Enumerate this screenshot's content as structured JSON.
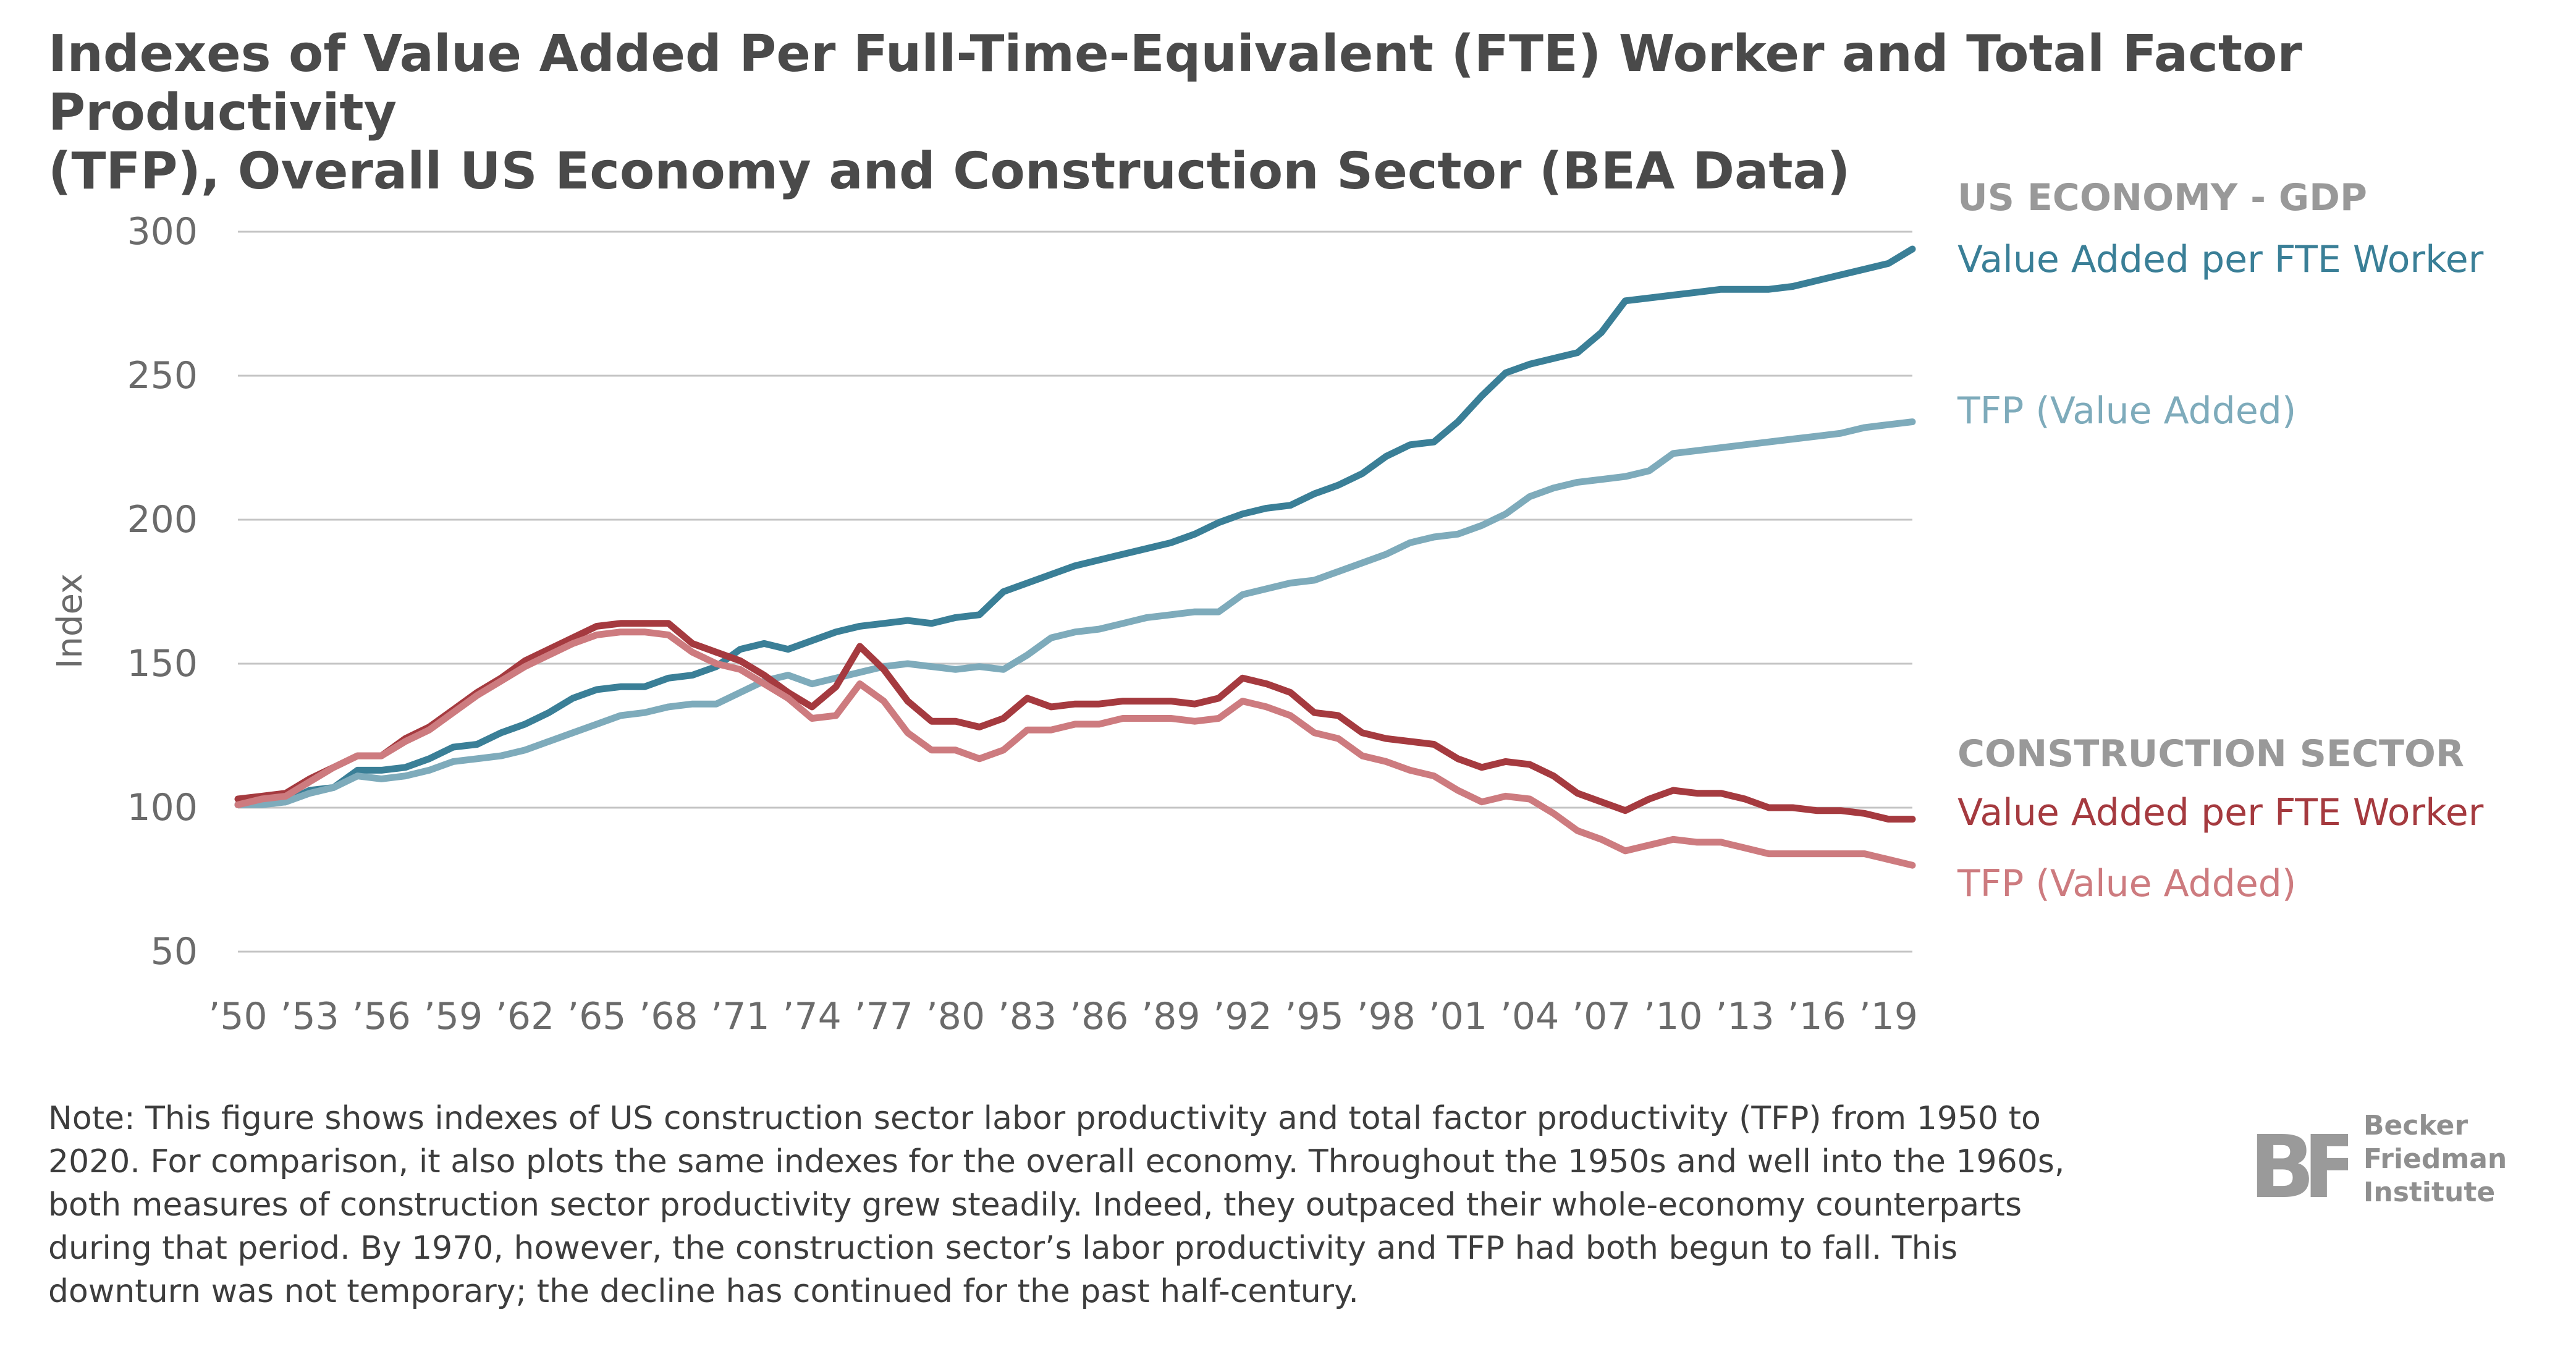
{
  "title": {
    "line1": "Indexes of Value Added Per Full-Time-Equivalent (FTE) Worker and Total Factor Productivity",
    "line2": "(TFP), Overall US Economy and Construction Sector (BEA Data)"
  },
  "note": "Note: This figure shows indexes of US construction sector labor productivity and total factor productivity (TFP) from 1950 to 2020. For comparison, it also plots the same indexes for the overall economy. Throughout the 1950s and well into the 1960s, both measures of construction sector productivity grew steadily. Indeed, they outpaced their whole-economy counterparts during that period. By 1970, however, the construction sector’s labor productivity and TFP had both begun to fall. This downturn was not temporary; the decline has continued for the past half-century.",
  "logo": {
    "mark": "BF",
    "line1": "Becker",
    "line2": "Friedman",
    "line3": "Institute"
  },
  "chart_data": {
    "type": "line",
    "ylabel": "Index",
    "xlabel": "",
    "ylim": [
      50,
      300
    ],
    "xlim": [
      1950,
      2020
    ],
    "yticks": [
      300,
      250,
      200,
      150,
      100,
      50
    ],
    "ytick_labels": [
      "300",
      "250",
      "200",
      "150",
      "100",
      "50"
    ],
    "xticks": [
      1950,
      1953,
      1956,
      1959,
      1962,
      1965,
      1968,
      1971,
      1974,
      1977,
      1980,
      1983,
      1986,
      1989,
      1992,
      1995,
      1998,
      2001,
      2004,
      2007,
      2010,
      2013,
      2016,
      2019
    ],
    "xtick_labels": [
      "’50",
      "’53",
      "’56",
      "’59",
      "’62",
      "’65",
      "’68",
      "’71",
      "’74",
      "’77",
      "’80",
      "’83",
      "’86",
      "’89",
      "’92",
      "’95",
      "’98",
      "’01",
      "’04",
      "’07",
      "’10",
      "’13",
      "’16",
      "’19"
    ],
    "grid": "horizontal",
    "legend": "right",
    "groups": [
      {
        "label": "US ECONOMY - GDP",
        "color": "#999999"
      },
      {
        "label": "CONSTRUCTION SECTOR",
        "color": "#999999"
      }
    ],
    "x": [
      1950,
      1951,
      1952,
      1953,
      1954,
      1955,
      1956,
      1957,
      1958,
      1959,
      1960,
      1961,
      1962,
      1963,
      1964,
      1965,
      1966,
      1967,
      1968,
      1969,
      1970,
      1971,
      1972,
      1973,
      1974,
      1975,
      1976,
      1977,
      1978,
      1979,
      1980,
      1981,
      1982,
      1983,
      1984,
      1985,
      1986,
      1987,
      1988,
      1989,
      1990,
      1991,
      1992,
      1993,
      1994,
      1995,
      1996,
      1997,
      1998,
      1999,
      2000,
      2001,
      2002,
      2003,
      2004,
      2005,
      2006,
      2007,
      2008,
      2009,
      2010,
      2011,
      2012,
      2013,
      2014,
      2015,
      2016,
      2017,
      2018,
      2019,
      2020
    ],
    "series": [
      {
        "name": "Value Added per FTE Worker",
        "group": "US ECONOMY - GDP",
        "color": "#3a7f97",
        "values": [
          101,
          102,
          102,
          106,
          107,
          113,
          113,
          114,
          117,
          121,
          122,
          126,
          129,
          133,
          138,
          141,
          142,
          142,
          145,
          146,
          149,
          155,
          157,
          155,
          158,
          161,
          163,
          164,
          165,
          164,
          166,
          167,
          175,
          178,
          181,
          184,
          186,
          188,
          190,
          192,
          195,
          199,
          202,
          204,
          205,
          209,
          212,
          216,
          222,
          226,
          227,
          234,
          243,
          251,
          254,
          256,
          258,
          265,
          276,
          277,
          278,
          279,
          280,
          280,
          280,
          281,
          283,
          285,
          287,
          289,
          294
        ]
      },
      {
        "name": "TFP (Value Added)",
        "group": "US ECONOMY - GDP",
        "color": "#7eabbb",
        "values": [
          101,
          101,
          102,
          105,
          107,
          111,
          110,
          111,
          113,
          116,
          117,
          118,
          120,
          123,
          126,
          129,
          132,
          133,
          135,
          136,
          136,
          140,
          144,
          146,
          143,
          145,
          147,
          149,
          150,
          149,
          148,
          149,
          148,
          153,
          159,
          161,
          162,
          164,
          166,
          167,
          168,
          168,
          174,
          176,
          178,
          179,
          182,
          185,
          188,
          192,
          194,
          195,
          198,
          202,
          208,
          211,
          213,
          214,
          215,
          217,
          223,
          224,
          225,
          226,
          227,
          228,
          229,
          230,
          232,
          233,
          234
        ]
      },
      {
        "name": "Value Added per FTE Worker",
        "group": "CONSTRUCTION SECTOR",
        "color": "#a53a3f",
        "values": [
          103,
          104,
          105,
          110,
          114,
          118,
          118,
          124,
          128,
          134,
          140,
          145,
          151,
          155,
          159,
          163,
          164,
          164,
          164,
          157,
          154,
          151,
          146,
          140,
          135,
          142,
          156,
          148,
          137,
          130,
          130,
          128,
          131,
          138,
          135,
          136,
          136,
          137,
          137,
          137,
          136,
          138,
          145,
          143,
          140,
          133,
          132,
          126,
          124,
          123,
          122,
          117,
          114,
          116,
          115,
          111,
          105,
          102,
          99,
          103,
          106,
          105,
          105,
          103,
          100,
          100,
          99,
          99,
          98,
          96,
          96
        ]
      },
      {
        "name": "TFP (Value Added)",
        "group": "CONSTRUCTION SECTOR",
        "color": "#cd7b7f",
        "values": [
          101,
          103,
          104,
          109,
          114,
          118,
          118,
          123,
          127,
          133,
          139,
          144,
          149,
          153,
          157,
          160,
          161,
          161,
          160,
          154,
          150,
          148,
          143,
          138,
          131,
          132,
          143,
          137,
          126,
          120,
          120,
          117,
          120,
          127,
          127,
          129,
          129,
          131,
          131,
          131,
          130,
          131,
          137,
          135,
          132,
          126,
          124,
          118,
          116,
          113,
          111,
          106,
          102,
          104,
          103,
          98,
          92,
          89,
          85,
          87,
          89,
          88,
          88,
          86,
          84,
          84,
          84,
          84,
          84,
          82,
          80
        ]
      }
    ]
  }
}
